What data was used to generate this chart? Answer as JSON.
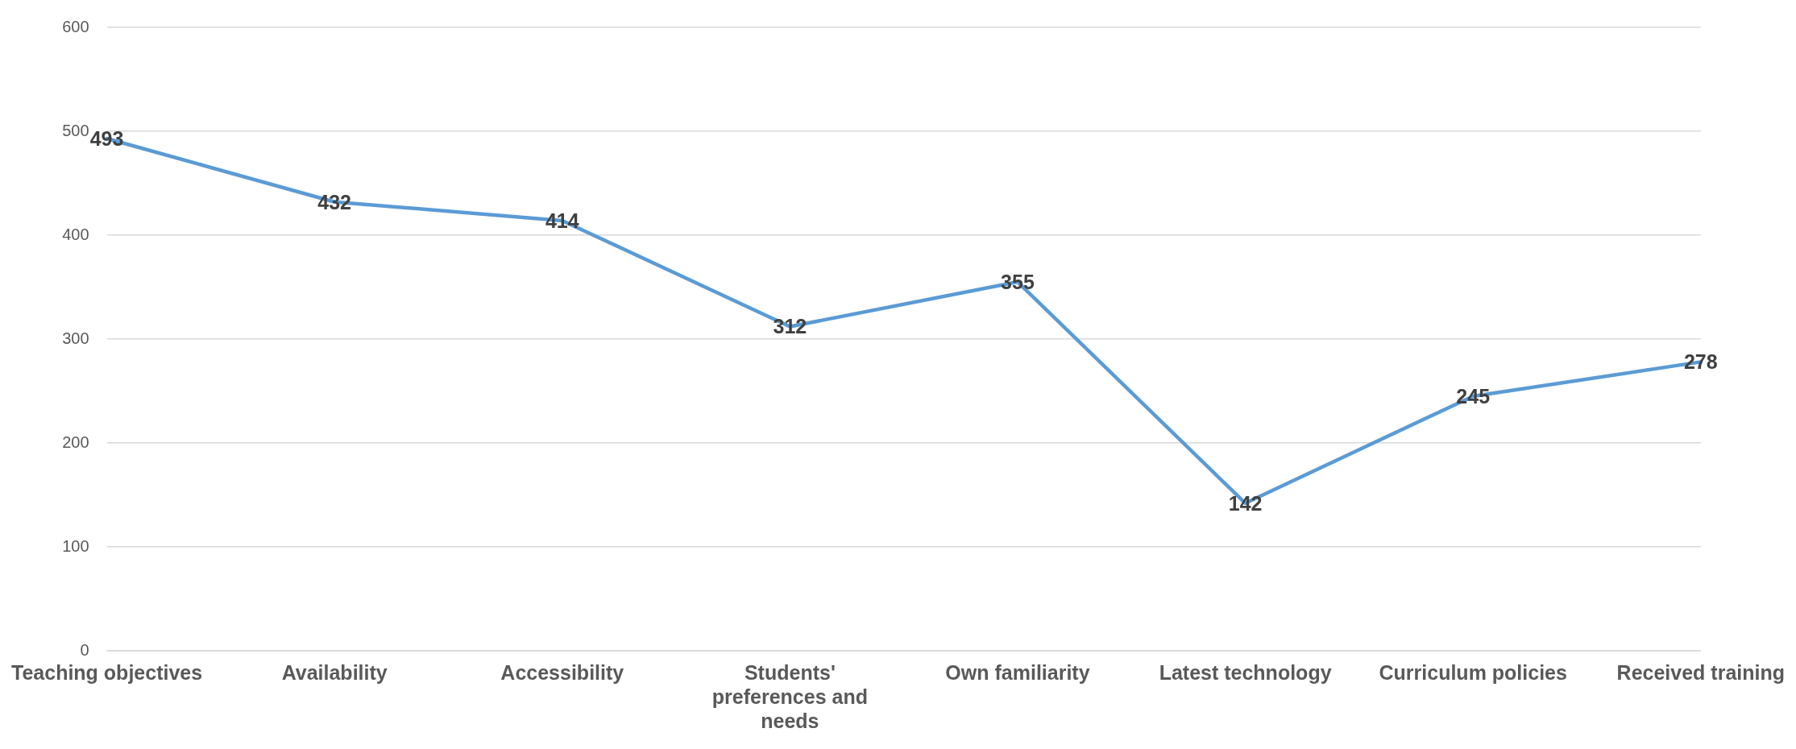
{
  "chart_data": {
    "type": "line",
    "categories": [
      "Teaching objectives",
      "Availability",
      "Accessibility",
      "Students' preferences and needs",
      "Own familiarity",
      "Latest technology",
      "Curriculum policies",
      "Received training"
    ],
    "series": [
      {
        "color": "#5b9bd5",
        "values": [
          493,
          432,
          414,
          312,
          355,
          142,
          245,
          278
        ]
      }
    ],
    "ylim": [
      0,
      600
    ],
    "yticks": [
      0,
      100,
      200,
      300,
      400,
      500,
      600
    ],
    "grid": "y",
    "legend": false,
    "marker": "none",
    "line_style": "solid",
    "data_labels": true
  }
}
